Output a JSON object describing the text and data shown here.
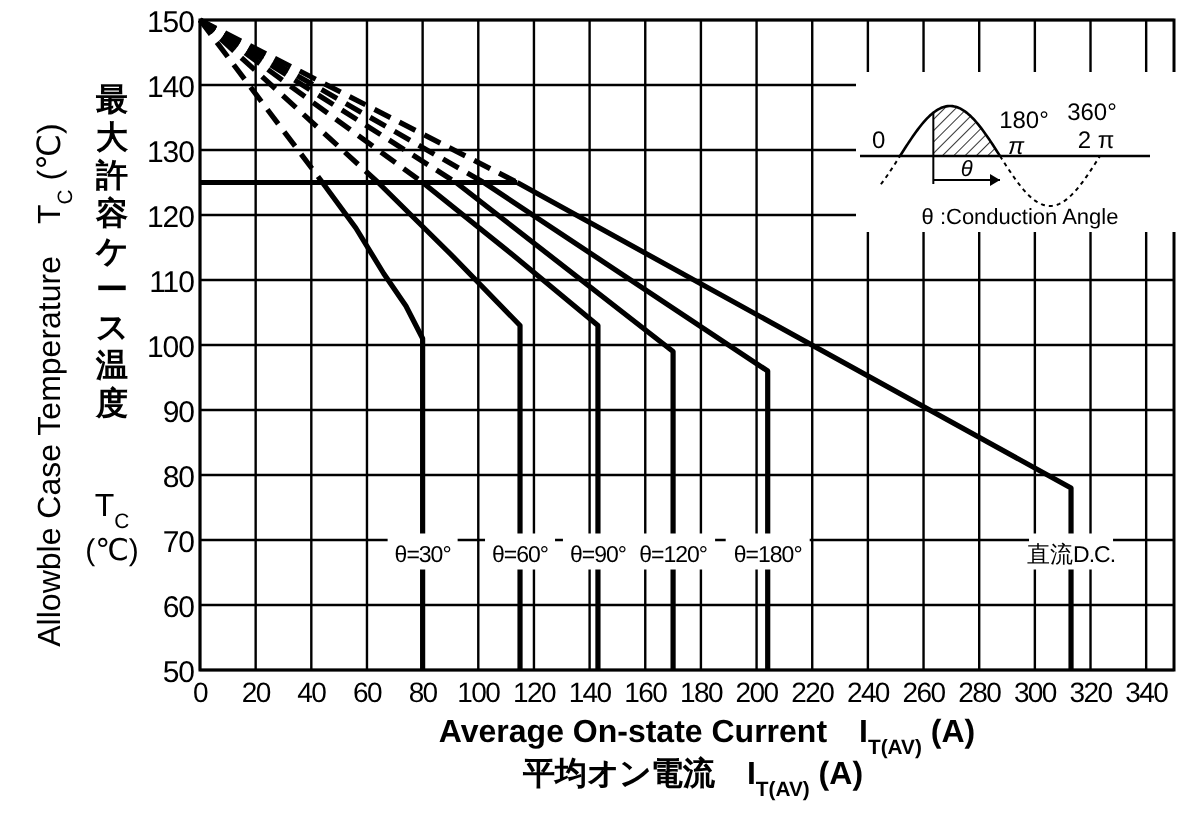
{
  "chart_data": {
    "type": "line",
    "xlabel": "Average On-state Current　I$_{T(AV)}$ (A)\n平均オン電流　I$_{T(AV)}$ (A)",
    "ylabel": "Allowble Case Temperature　T$_{C}$ (℃)",
    "xlim": [
      0,
      350
    ],
    "ylim": [
      50,
      150
    ],
    "xticks": [
      0,
      20,
      40,
      60,
      80,
      100,
      120,
      140,
      160,
      180,
      200,
      220,
      240,
      260,
      280,
      300,
      320,
      340
    ],
    "yticks": [
      50,
      60,
      70,
      80,
      90,
      100,
      110,
      120,
      130,
      140,
      150
    ],
    "grid": true,
    "marker": "none",
    "series": [
      {
        "color": "#000000",
        "line_style": "dashed",
        "x": [
          0,
          44
        ],
        "values": [
          150,
          125
        ]
      },
      {
        "color": "#000000",
        "line_style": "dashed",
        "x": [
          0,
          64
        ],
        "values": [
          150,
          125
        ]
      },
      {
        "color": "#000000",
        "line_style": "dashed",
        "x": [
          0,
          80
        ],
        "values": [
          150,
          125
        ]
      },
      {
        "color": "#000000",
        "line_style": "dashed",
        "x": [
          0,
          92
        ],
        "values": [
          150,
          125
        ]
      },
      {
        "color": "#000000",
        "line_style": "dashed",
        "x": [
          0,
          102
        ],
        "values": [
          150,
          125
        ]
      },
      {
        "color": "#000000",
        "line_style": "dashed",
        "x": [
          0,
          114
        ],
        "values": [
          150,
          125
        ]
      },
      {
        "color": "#000000",
        "line_style": "solid",
        "x": [
          0,
          114
        ],
        "values": [
          125,
          125
        ]
      },
      {
        "name": "θ=30°",
        "color": "#000000",
        "line_style": "solid",
        "x": [
          44,
          56,
          66,
          74,
          80,
          80
        ],
        "values": [
          125,
          118,
          111,
          106,
          101,
          50
        ]
      },
      {
        "name": "θ=60°",
        "color": "#000000",
        "line_style": "solid",
        "x": [
          64,
          90,
          115,
          115
        ],
        "values": [
          125,
          114,
          103,
          50
        ]
      },
      {
        "name": "θ=90°",
        "color": "#000000",
        "line_style": "solid",
        "x": [
          80,
          112,
          143,
          143
        ],
        "values": [
          125,
          114,
          103,
          50
        ]
      },
      {
        "name": "θ=120°",
        "color": "#000000",
        "line_style": "solid",
        "x": [
          92,
          170,
          170
        ],
        "values": [
          125,
          99,
          50
        ]
      },
      {
        "name": "θ=180°",
        "color": "#000000",
        "line_style": "solid",
        "x": [
          102,
          204,
          204
        ],
        "values": [
          125,
          96,
          50
        ]
      },
      {
        "name": "直流D.C.",
        "color": "#000000",
        "line_style": "solid",
        "x": [
          114,
          313,
          313
        ],
        "values": [
          125,
          78,
          50
        ]
      }
    ],
    "annotations": [
      "最大許容ケース温度",
      "T$_{C}$",
      "(℃)",
      "0",
      "180°",
      "π",
      "360°",
      "2 π",
      "θ",
      "θ :Conduction Angle"
    ]
  }
}
